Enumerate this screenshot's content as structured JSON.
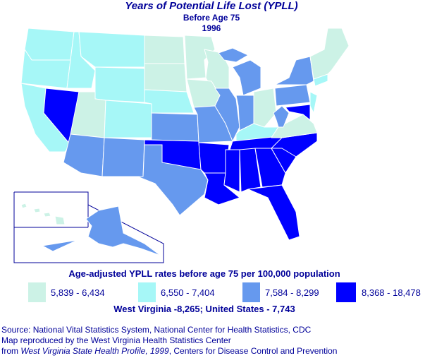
{
  "title": "Years of Potential Life Lost (YPLL)",
  "subtitle": "Before Age 75",
  "year": "1996",
  "legend": {
    "title": "Age-adjusted YPLL rates before age 75 per 100,000 population",
    "classes": [
      {
        "label": "5,839 - 6,434",
        "color": "#ccf2e6"
      },
      {
        "label": "6,550 - 7,404",
        "color": "#a6f7f7"
      },
      {
        "label": "7,584 - 8,299",
        "color": "#6699ee"
      },
      {
        "label": "8,368 - 18,478",
        "color": "#0000ff"
      }
    ]
  },
  "note": "West Virginia -8,265; United States - 7,743",
  "source": [
    "Source: National Vital Statistics System, National Center for Health Statistics, CDC",
    "Map reproduced by the West Virginia Health Statistics Center",
    [
      "from ",
      "West Virginia State Health Profile, 1999",
      ", Centers for Disease Control and Prevention"
    ]
  ]
}
